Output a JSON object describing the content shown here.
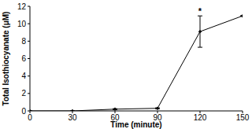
{
  "chart_data": {
    "type": "line",
    "x_label": "Time (minute)",
    "y_label": "Total Isothiocyanate (μM)",
    "x": [
      0,
      30,
      60,
      90,
      120,
      150
    ],
    "values": [
      0,
      0,
      0.2,
      0.3,
      9.1,
      10.9
    ],
    "errors": [
      0,
      0,
      0.05,
      0.05,
      1.8,
      0
    ],
    "color": "#000000",
    "marker": "diamond",
    "xlim": [
      0,
      150
    ],
    "xticks": [
      0,
      30,
      60,
      90,
      120,
      150
    ],
    "ylim": [
      0,
      12
    ],
    "yticks": [
      0,
      2,
      4,
      6,
      8,
      10,
      12
    ],
    "grid": false,
    "annotations": [
      {
        "text": "*",
        "x": 120
      }
    ]
  }
}
